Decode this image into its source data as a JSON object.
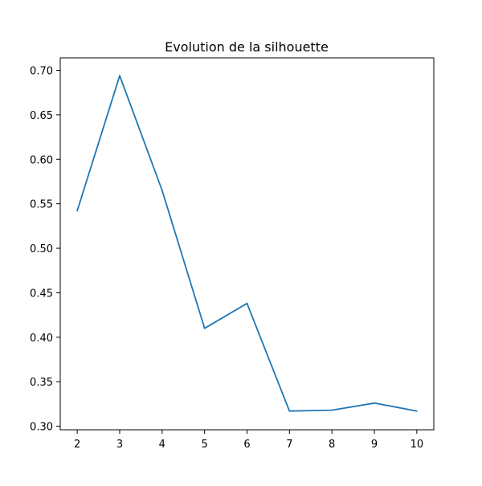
{
  "chart_data": {
    "type": "line",
    "title": "Evolution de la silhouette",
    "xlabel": "",
    "ylabel": "",
    "x": [
      2,
      3,
      4,
      5,
      6,
      7,
      8,
      9,
      10
    ],
    "series": [
      {
        "values": [
          0.542,
          0.694,
          0.565,
          0.41,
          0.438,
          0.317,
          0.318,
          0.326,
          0.317
        ],
        "color": "#1f77b4"
      }
    ],
    "xlim": [
      1.6,
      10.4
    ],
    "ylim": [
      0.296,
      0.714
    ],
    "xticks": [
      2,
      3,
      4,
      5,
      6,
      7,
      8,
      9,
      10
    ],
    "xtick_labels": [
      "2",
      "3",
      "4",
      "5",
      "6",
      "7",
      "8",
      "9",
      "10"
    ],
    "yticks": [
      0.3,
      0.35,
      0.4,
      0.45,
      0.5,
      0.55,
      0.6,
      0.65,
      0.7
    ],
    "ytick_labels": [
      "0.30",
      "0.35",
      "0.40",
      "0.45",
      "0.50",
      "0.55",
      "0.60",
      "0.65",
      "0.70"
    ],
    "grid": false,
    "legend": "none"
  }
}
